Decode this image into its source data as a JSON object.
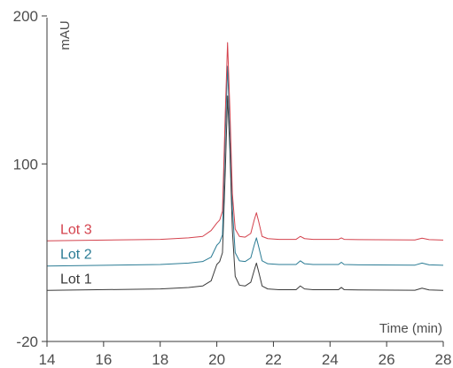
{
  "chart_data": {
    "type": "line",
    "title": "",
    "xlabel": "Time (min)",
    "ylabel": "mAU",
    "xlim": [
      14,
      28
    ],
    "ylim": [
      -20,
      200
    ],
    "x_ticks": [
      14,
      16,
      18,
      20,
      22,
      24,
      26,
      28
    ],
    "y_ticks": [
      -20,
      100,
      200
    ],
    "grid": false,
    "series": [
      {
        "name": "Lot 1",
        "color": "#3a3a3a",
        "x": [
          14.0,
          18.0,
          19.0,
          19.5,
          19.8,
          20.0,
          20.1,
          20.2,
          20.3,
          20.38,
          20.46,
          20.55,
          20.65,
          20.8,
          21.0,
          21.2,
          21.32,
          21.4,
          21.48,
          21.6,
          21.8,
          22.2,
          22.8,
          22.95,
          23.1,
          23.4,
          24.3,
          24.4,
          24.5,
          25.0,
          27.0,
          27.25,
          27.5,
          28.0
        ],
        "y": [
          14.5,
          15.5,
          16.5,
          17.5,
          21.0,
          32.0,
          34.0,
          40.0,
          95.0,
          146.0,
          110.0,
          55.0,
          24.0,
          18.0,
          17.5,
          20.0,
          28.0,
          33.0,
          27.0,
          17.5,
          15.5,
          15.0,
          15.0,
          17.5,
          15.5,
          15.0,
          15.0,
          16.5,
          15.0,
          14.8,
          14.6,
          16.0,
          14.8,
          14.5
        ]
      },
      {
        "name": "Lot 2",
        "color": "#2a7b94",
        "x": [
          14.0,
          18.0,
          19.0,
          19.5,
          19.8,
          20.0,
          20.1,
          20.2,
          20.3,
          20.38,
          20.46,
          20.55,
          20.65,
          20.8,
          21.0,
          21.2,
          21.32,
          21.4,
          21.48,
          21.6,
          21.8,
          22.2,
          22.8,
          22.95,
          23.1,
          23.4,
          24.3,
          24.4,
          24.5,
          25.0,
          27.0,
          27.25,
          27.5,
          28.0
        ],
        "y": [
          31.0,
          32.0,
          33.0,
          34.0,
          37.0,
          45.0,
          47.0,
          52.0,
          120.0,
          166.0,
          125.0,
          70.0,
          40.0,
          34.5,
          34.0,
          36.5,
          45.0,
          50.0,
          44.0,
          34.5,
          32.5,
          32.0,
          32.0,
          34.5,
          32.5,
          32.0,
          32.0,
          33.5,
          32.0,
          31.8,
          31.6,
          33.0,
          31.8,
          31.5
        ]
      },
      {
        "name": "Lot 3",
        "color": "#d4424d",
        "x": [
          14.0,
          18.0,
          19.0,
          19.5,
          19.8,
          20.0,
          20.1,
          20.2,
          20.3,
          20.38,
          20.46,
          20.55,
          20.65,
          20.8,
          21.0,
          21.2,
          21.32,
          21.4,
          21.48,
          21.6,
          21.8,
          22.2,
          22.8,
          22.95,
          23.1,
          23.4,
          24.3,
          24.4,
          24.5,
          25.0,
          27.0,
          27.25,
          27.5,
          28.0
        ],
        "y": [
          48.0,
          49.0,
          50.0,
          51.0,
          55.0,
          60.0,
          62.0,
          68.0,
          135.0,
          182.0,
          138.0,
          80.0,
          56.0,
          51.0,
          50.5,
          53.0,
          62.0,
          67.0,
          61.0,
          51.0,
          49.5,
          49.0,
          49.0,
          51.0,
          49.5,
          49.0,
          49.0,
          50.0,
          49.0,
          48.8,
          48.6,
          49.8,
          48.8,
          48.5
        ]
      }
    ]
  }
}
